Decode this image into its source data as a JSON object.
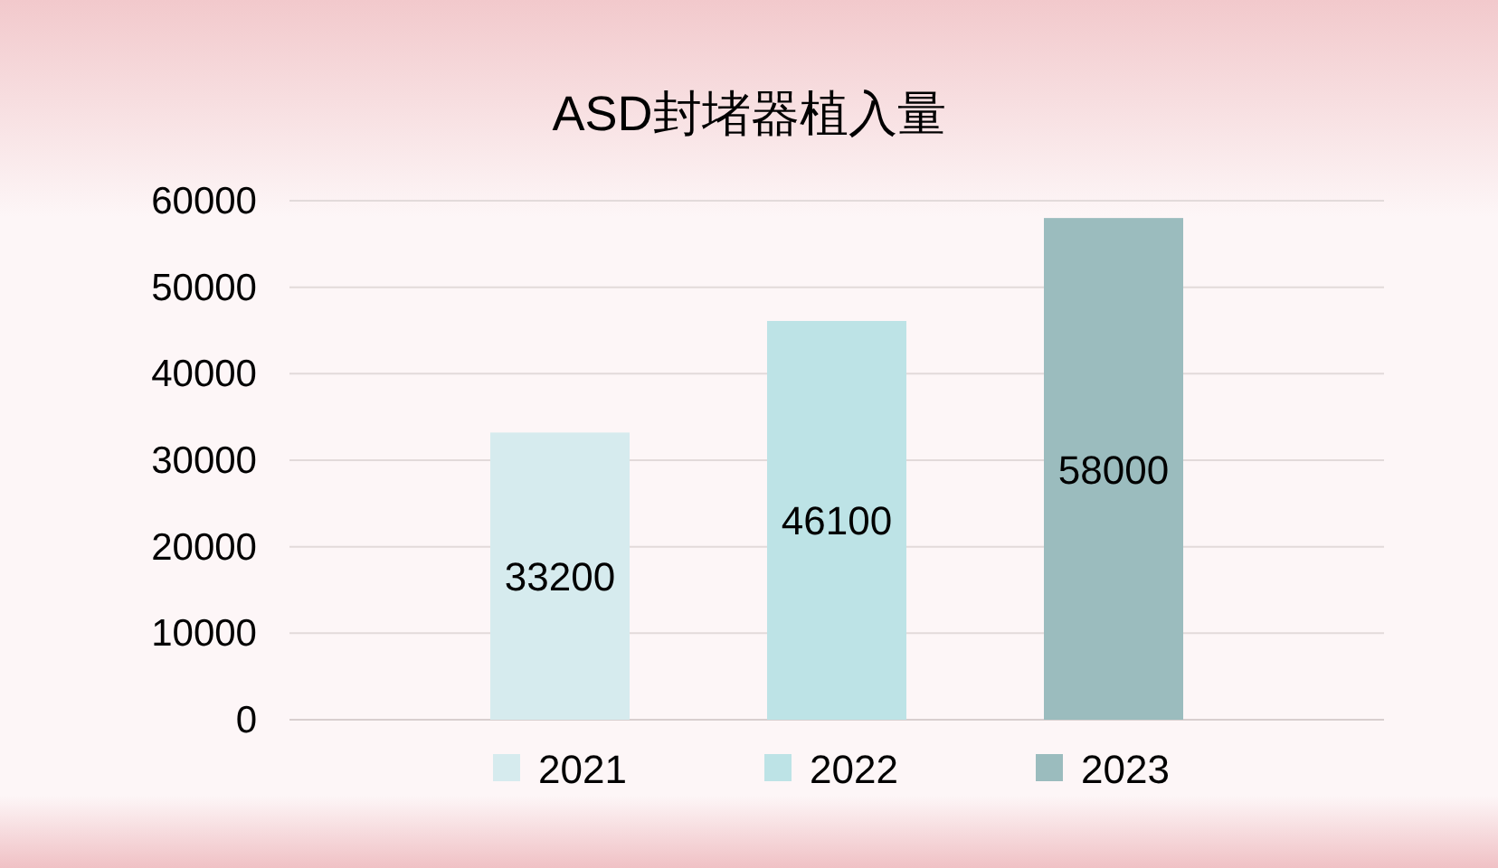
{
  "chart_data": {
    "type": "bar",
    "title": "ASD封堵器植入量",
    "categories": [
      null
    ],
    "series": [
      {
        "name": "2021",
        "color": "#d6ebee",
        "values": [
          33200
        ]
      },
      {
        "name": "2022",
        "color": "#bde3e6",
        "values": [
          46100
        ]
      },
      {
        "name": "2023",
        "color": "#9bbcbe",
        "values": [
          58000
        ]
      }
    ],
    "ylim": [
      0,
      60000
    ],
    "yticks": [
      0,
      10000,
      20000,
      30000,
      40000,
      50000,
      60000
    ],
    "grid": "y",
    "legend": "bottom",
    "data_labels": true
  }
}
